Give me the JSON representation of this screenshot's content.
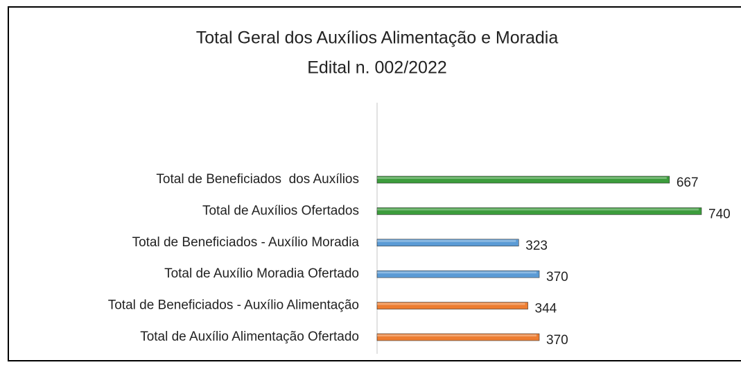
{
  "chart_data": {
    "type": "bar",
    "orientation": "horizontal",
    "title": "Total Geral dos Auxílios Alimentação e Moradia",
    "subtitle": "Edital n. 002/2022",
    "categories": [
      "Total de Beneficiados  dos Auxílios",
      "Total de Auxílios Ofertados",
      "Total de Beneficiados - Auxílio Moradia",
      "Total de Auxílio Moradia Ofertado",
      "Total de Beneficiados - Auxílio Alimentação",
      "Total de Auxílio Alimentação Ofertado"
    ],
    "values": [
      667,
      740,
      323,
      370,
      344,
      370
    ],
    "colors": [
      "#3c9c3c",
      "#3c9c3c",
      "#5b9bd5",
      "#5b9bd5",
      "#ed7d31",
      "#ed7d31"
    ],
    "grid": false
  }
}
